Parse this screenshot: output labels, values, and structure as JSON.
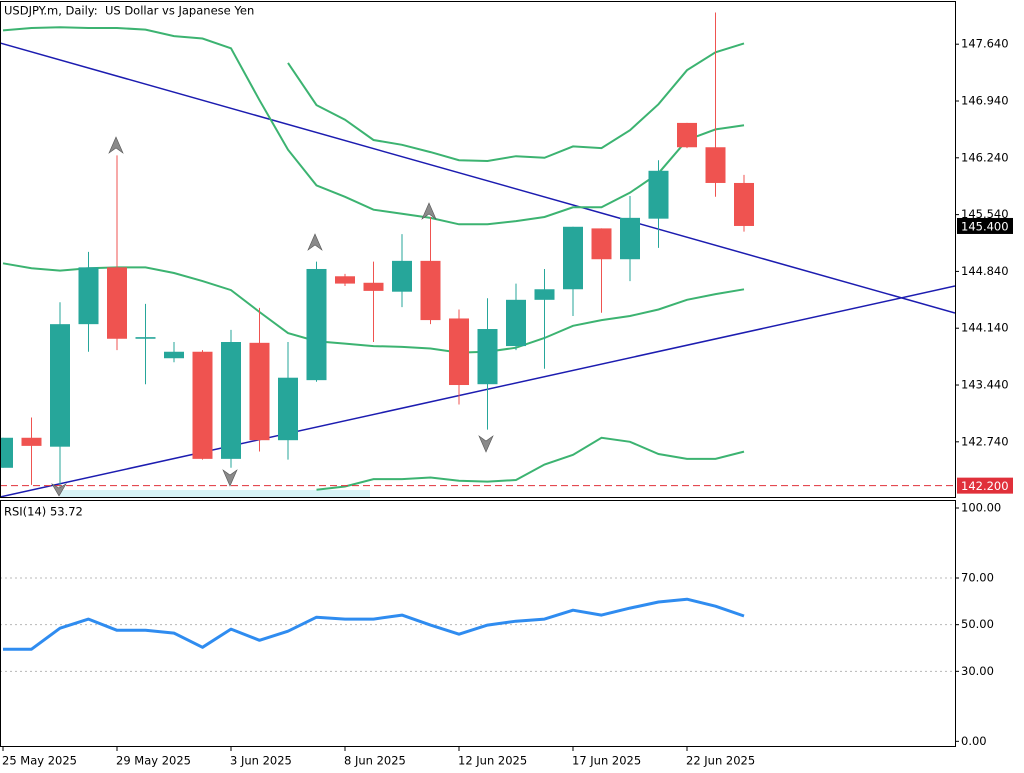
{
  "chart_data": [
    {
      "type": "candlestick",
      "title": "USDJPY.m, Daily:  US Dollar vs Japanese Yen",
      "categories": [
        "25 May 2025",
        null,
        null,
        null,
        "29 May 2025",
        null,
        null,
        null,
        "3 Jun 2025",
        null,
        null,
        null,
        "8 Jun 2025",
        null,
        null,
        null,
        "12 Jun 2025",
        null,
        null,
        null,
        "17 Jun 2025",
        null,
        null,
        null,
        "22 Jun 2025",
        null,
        null
      ],
      "open": [
        142.42,
        142.79,
        142.68,
        144.19,
        144.89,
        144.01,
        143.77,
        143.85,
        142.53,
        143.96,
        142.76,
        143.5,
        144.78,
        144.7,
        144.59,
        144.97,
        144.26,
        143.45,
        143.92,
        144.49,
        144.62,
        145.37,
        144.99,
        145.49,
        146.67,
        146.37,
        145.93
      ],
      "high": [
        142.79,
        143.04,
        144.46,
        145.08,
        146.27,
        144.44,
        143.97,
        143.87,
        144.12,
        144.39,
        143.97,
        144.96,
        144.81,
        144.96,
        145.3,
        145.51,
        144.37,
        144.51,
        144.69,
        144.87,
        145.39,
        145.37,
        145.77,
        146.21,
        146.67,
        148.03,
        146.03
      ],
      "low": [
        142.42,
        142.21,
        142.15,
        143.85,
        143.87,
        143.45,
        143.72,
        142.52,
        142.42,
        142.62,
        142.52,
        143.48,
        144.66,
        143.97,
        144.4,
        144.19,
        143.2,
        142.89,
        143.87,
        143.64,
        144.29,
        144.33,
        144.72,
        145.13,
        146.36,
        145.76,
        145.33
      ],
      "close": [
        142.79,
        142.69,
        144.19,
        144.89,
        144.01,
        144.03,
        143.85,
        142.53,
        143.97,
        142.76,
        143.53,
        144.87,
        144.69,
        144.6,
        144.97,
        144.24,
        143.44,
        144.13,
        144.49,
        144.62,
        145.39,
        144.99,
        145.5,
        146.08,
        146.37,
        145.93,
        145.4
      ],
      "up_color": "#26a69a",
      "down_color": "#ef5350",
      "series": [
        {
          "color": "#3cb371",
          "values": [
            147.81,
            147.84,
            147.85,
            147.84,
            147.84,
            147.82,
            147.74,
            147.71,
            147.59,
            146.95,
            146.34,
            145.9,
            145.76,
            145.6,
            145.55,
            145.5,
            145.42,
            145.42,
            145.46,
            145.51,
            145.63,
            145.63,
            145.81,
            146.05,
            146.46,
            146.59,
            146.64
          ]
        },
        {
          "color": "#3cb371",
          "values": [
            null,
            null,
            null,
            null,
            null,
            null,
            null,
            null,
            null,
            null,
            147.41,
            146.89,
            146.71,
            146.46,
            146.4,
            146.31,
            146.21,
            146.2,
            146.26,
            146.24,
            146.38,
            146.36,
            146.58,
            146.9,
            147.32,
            147.54,
            147.65
          ]
        },
        {
          "color": "#3cb371",
          "values": [
            144.94,
            144.88,
            144.85,
            144.88,
            144.89,
            144.89,
            144.82,
            144.72,
            144.61,
            144.34,
            144.08,
            143.98,
            143.95,
            143.92,
            143.91,
            143.89,
            143.84,
            143.85,
            143.9,
            144.02,
            144.17,
            144.24,
            144.29,
            144.37,
            144.49,
            144.56,
            144.62
          ]
        },
        {
          "color": "#3cb371",
          "values": [
            null,
            null,
            null,
            null,
            null,
            null,
            null,
            null,
            null,
            null,
            null,
            142.15,
            142.19,
            142.28,
            142.28,
            142.3,
            142.26,
            142.25,
            142.27,
            142.46,
            142.58,
            142.79,
            142.74,
            142.59,
            142.53,
            142.53,
            142.62
          ]
        }
      ],
      "ylim": [
        142.06,
        148.16
      ],
      "yticks": [
        {
          "value": 147.64,
          "label": "147.640"
        },
        {
          "value": 146.94,
          "label": "146.940"
        },
        {
          "value": 146.24,
          "label": "146.240"
        },
        {
          "value": 145.54,
          "label": "145.540"
        },
        {
          "value": 144.84,
          "label": "144.840"
        },
        {
          "value": 144.14,
          "label": "144.140"
        },
        {
          "value": 143.44,
          "label": "143.440"
        },
        {
          "value": 142.74,
          "label": "142.740"
        }
      ],
      "current_price": {
        "value": 145.4,
        "label": "145.400"
      },
      "level_line": {
        "value": 142.2,
        "label": "142.200",
        "color": "#e0303a"
      }
    },
    {
      "type": "line",
      "title": "RSI(14) 53.72",
      "color": "#2f8cf0",
      "values": [
        39.5,
        39.5,
        48.5,
        52.4,
        47.6,
        47.6,
        46.4,
        40.3,
        48.1,
        43.3,
        47.2,
        53.2,
        52.4,
        52.4,
        54.1,
        49.8,
        45.9,
        49.8,
        51.5,
        52.4,
        56.2,
        54.1,
        57.1,
        59.7,
        60.9,
        57.9,
        53.7
      ],
      "ylim": [
        -2,
        103
      ],
      "yticks": [
        {
          "value": 100,
          "label": "100.00"
        },
        {
          "value": 70,
          "label": "70.00"
        },
        {
          "value": 50,
          "label": "50.00"
        },
        {
          "value": 30,
          "label": "30.00"
        },
        {
          "value": 0,
          "label": "0.00"
        }
      ],
      "grid": [
        70,
        50,
        30
      ]
    }
  ]
}
